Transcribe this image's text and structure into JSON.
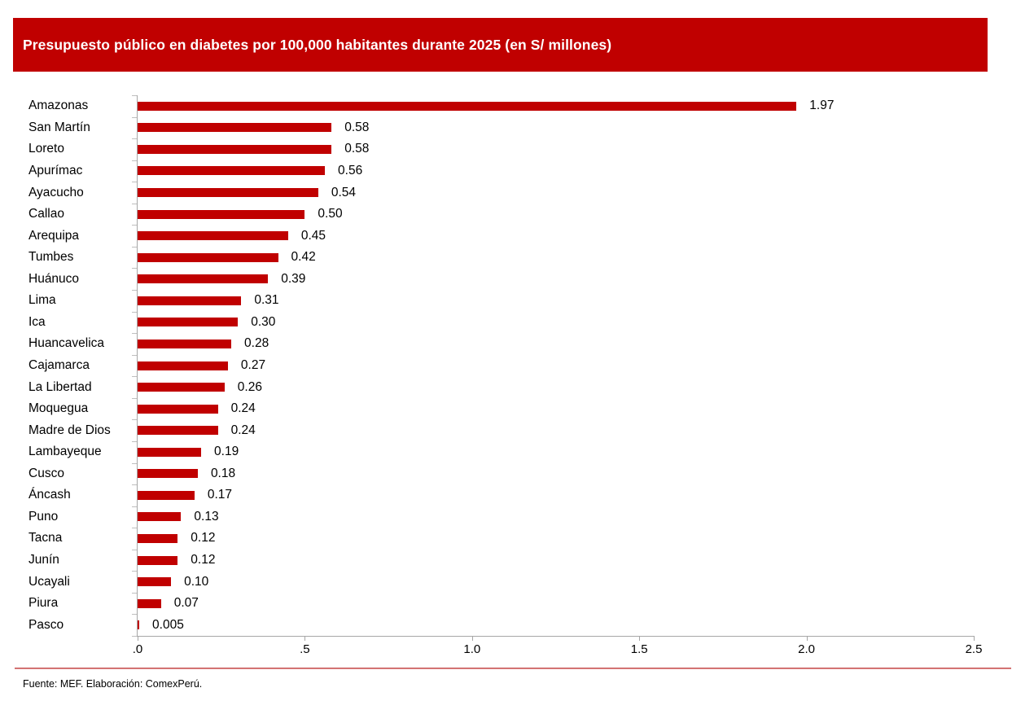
{
  "banner": {
    "text": "Presupuesto público en diabetes por 100,000 habitantes durante 2025 (en S/ millones)",
    "bg_color": "#C00000",
    "text_color": "#FFFFFF"
  },
  "chart_data": {
    "type": "bar",
    "orientation": "horizontal",
    "title": "Presupuesto público en diabetes por 100,000 habitantes durante 2025 (en S/ millones)",
    "categories": [
      "Amazonas",
      "San Martín",
      "Loreto",
      "Apurímac",
      "Ayacucho",
      "Callao",
      "Arequipa",
      "Tumbes",
      "Huánuco",
      "Lima",
      "Ica",
      "Huancavelica",
      "Cajamarca",
      "La Libertad",
      "Moquegua",
      "Madre de Dios",
      "Lambayeque",
      "Cusco",
      "Áncash",
      "Puno",
      "Tacna",
      "Junín",
      "Ucayali",
      "Piura",
      "Pasco"
    ],
    "values": [
      1.97,
      0.58,
      0.58,
      0.56,
      0.54,
      0.5,
      0.45,
      0.42,
      0.39,
      0.31,
      0.3,
      0.28,
      0.27,
      0.26,
      0.24,
      0.24,
      0.19,
      0.18,
      0.17,
      0.13,
      0.12,
      0.12,
      0.1,
      0.07,
      0.005
    ],
    "value_labels": [
      "1.97",
      "0.58",
      "0.58",
      "0.56",
      "0.54",
      "0.50",
      "0.45",
      "0.42",
      "0.39",
      "0.31",
      "0.30",
      "0.28",
      "0.27",
      "0.26",
      "0.24",
      "0.24",
      "0.19",
      "0.18",
      "0.17",
      "0.13",
      "0.12",
      "0.12",
      "0.10",
      "0.07",
      "0.005"
    ],
    "xlabel": "",
    "ylabel": "",
    "xlim": [
      0,
      2.5
    ],
    "x_ticks": [
      0,
      0.5,
      1.0,
      1.5,
      2.0,
      2.5
    ],
    "x_tick_labels": [
      ".0",
      ".5",
      "1.0",
      "1.5",
      "2.0",
      "2.5"
    ],
    "bar_color": "#C00000",
    "axis_color": "#A6A6A6",
    "grid": false,
    "legend": "none",
    "value_label_position": "outside-end"
  },
  "footer": {
    "source": "Fuente: MEF. Elaboración: ComexPerú."
  }
}
